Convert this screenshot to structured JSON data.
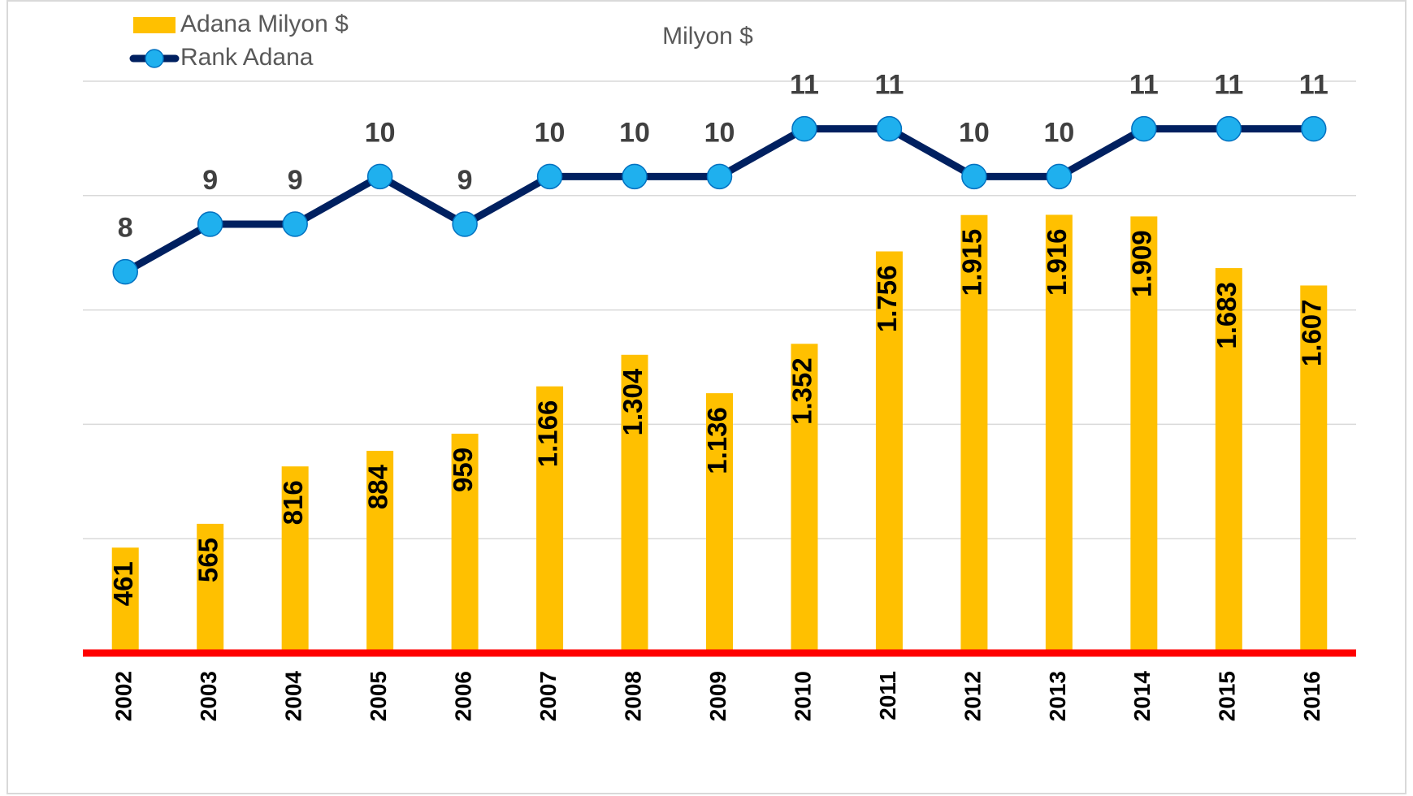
{
  "chart_data": {
    "type": "bar",
    "title": "Milyon $",
    "categories": [
      "2002",
      "2003",
      "2004",
      "2005",
      "2006",
      "2007",
      "2008",
      "2009",
      "2010",
      "2011",
      "2012",
      "2013",
      "2014",
      "2015",
      "2016"
    ],
    "series": [
      {
        "name": "Adana Milyon $",
        "type": "bar",
        "color": "#ffc000",
        "values": [
          461,
          565,
          816,
          884,
          959,
          1166,
          1304,
          1136,
          1352,
          1756,
          1915,
          1916,
          1909,
          1683,
          1607
        ],
        "value_labels": [
          "461",
          "565",
          "816",
          "884",
          "959",
          "1.166",
          "1.304",
          "1.136",
          "1.352",
          "1.756",
          "1.915",
          "1.916",
          "1.909",
          "1.683",
          "1.607"
        ]
      },
      {
        "name": "Rank Adana",
        "type": "line",
        "axis": "y2",
        "color": "#002060",
        "marker_color": "#1fb0ee",
        "values": [
          8,
          9,
          9,
          10,
          9,
          10,
          10,
          10,
          11,
          11,
          10,
          10,
          11,
          11,
          11
        ]
      }
    ],
    "ylim": [
      0,
      2500
    ],
    "yticks": [
      0,
      500,
      1000,
      1500,
      2000,
      2500
    ],
    "y2lim": [
      0,
      12
    ],
    "grid": true,
    "legend": "top-left"
  }
}
